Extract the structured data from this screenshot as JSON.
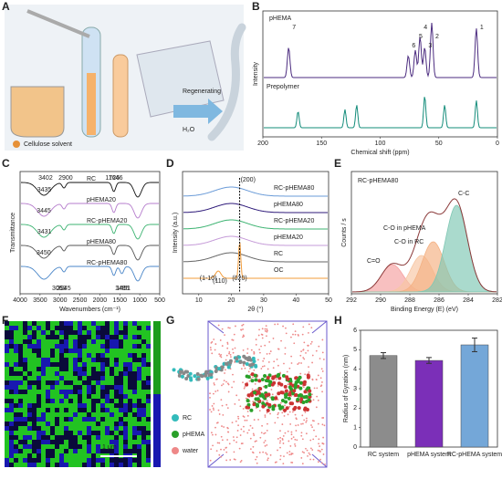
{
  "panels": {
    "A": {
      "letter": "A",
      "arrow": "Regenerating",
      "water": "H₂O",
      "legend": "Cellulose solvent"
    },
    "B": {
      "letter": "B",
      "top": "pHEMA",
      "bottom": "Prepolymer",
      "ylabel": "Intensity",
      "xlabel": "Chemical shift (ppm)",
      "xticks": [
        200,
        150,
        100,
        50,
        0
      ],
      "peaks": [
        "1",
        "2",
        "3",
        "4",
        "5",
        "6",
        "7"
      ]
    },
    "C": {
      "letter": "C",
      "ylabel": "Transmittance",
      "xlabel": "Wavenumbers (cm⁻¹)",
      "xticks": [
        4000,
        3500,
        3000,
        2500,
        2000,
        1500,
        1000,
        500
      ],
      "curves": [
        "RC",
        "pHEMA20",
        "RC-pHEMA20",
        "pHEMA80",
        "RC-pHEMA80"
      ],
      "notes": [
        "3402",
        "2900",
        "1726",
        "1646",
        "3435",
        "3445",
        "3431",
        "3450",
        "3063",
        "2945",
        "1485",
        "1451"
      ]
    },
    "D": {
      "letter": "D",
      "ylabel": "Intensity (a.u.)",
      "xlabel": "2θ (°)",
      "xticks": [
        10,
        20,
        30,
        40,
        50
      ],
      "curves": [
        "RC-pHEMA80",
        "pHEMA80",
        "RC-pHEMA20",
        "pHEMA20",
        "RC",
        "OC"
      ],
      "notes": [
        "(200)",
        "(1-10)",
        "(110)",
        "(020)"
      ]
    },
    "E": {
      "letter": "E",
      "title": "RC-pHEMA80",
      "ylabel": "Counts / s",
      "xlabel": "Binding Energy (E) (eV)",
      "xticks": [
        292,
        290,
        288,
        286,
        284,
        282
      ],
      "notes": [
        "C-C",
        "C-O in pHEMA",
        "C-O in RC",
        "C=O"
      ]
    },
    "F": {
      "letter": "F",
      "scale": "1 μm"
    },
    "G": {
      "letter": "G",
      "legend": [
        "RC",
        "pHEMA",
        "water"
      ]
    }
  },
  "chart_data": [
    {
      "type": "bar",
      "letter": "H",
      "ylabel": "Radius of Gyration (nm)",
      "categories": [
        "RC system",
        "pHEMA system",
        "RC-pHEMA system"
      ],
      "values": [
        4.7,
        4.45,
        5.25
      ],
      "errors": [
        0.15,
        0.15,
        0.35
      ],
      "colors": [
        "#8c8c8c",
        "#7b2fb8",
        "#74a7d8"
      ],
      "ylim": [
        0,
        6
      ],
      "yticks": [
        0,
        1,
        2,
        3,
        4,
        5,
        6
      ]
    }
  ]
}
